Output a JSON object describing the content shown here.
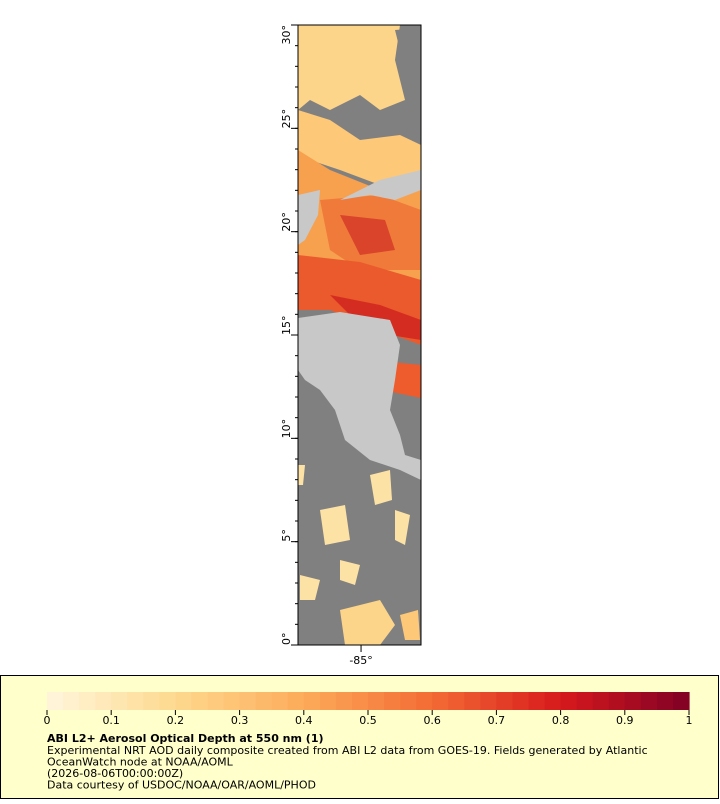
{
  "map": {
    "xlim": [
      -88.05,
      -82.1
    ],
    "ylim": [
      0,
      30
    ],
    "xticks": [
      {
        "value": -85,
        "label": "-85°"
      }
    ],
    "yticks": [
      {
        "value": 0,
        "label": "0°"
      },
      {
        "value": 5,
        "label": "5°"
      },
      {
        "value": 10,
        "label": "10°"
      },
      {
        "value": 15,
        "label": "15°"
      },
      {
        "value": 20,
        "label": "20°"
      },
      {
        "value": 25,
        "label": "25°"
      },
      {
        "value": 30,
        "label": "30°"
      }
    ]
  },
  "legend": {
    "title": "ABI L2+ Aerosol Optical Depth at 550 nm (1)",
    "description": [
      "Experimental NRT AOD daily composite created from ABI L2 data from GOES-19. Fields generated by Atlantic",
      "OceanWatch node at NOAA/AOML",
      "(2026-08-06T00:00:00Z)",
      "Data courtesy of USDOC/NOAA/OAR/AOML/PHOD"
    ],
    "range": [
      0,
      1
    ],
    "ticks": [
      0,
      0.1,
      0.2,
      0.3,
      0.4,
      0.5,
      0.6,
      0.7,
      0.8,
      0.9,
      1
    ],
    "colors": [
      "#fff6dc",
      "#fed98e",
      "#fdab5a",
      "#f36b34",
      "#d7191c",
      "#800026"
    ]
  }
}
